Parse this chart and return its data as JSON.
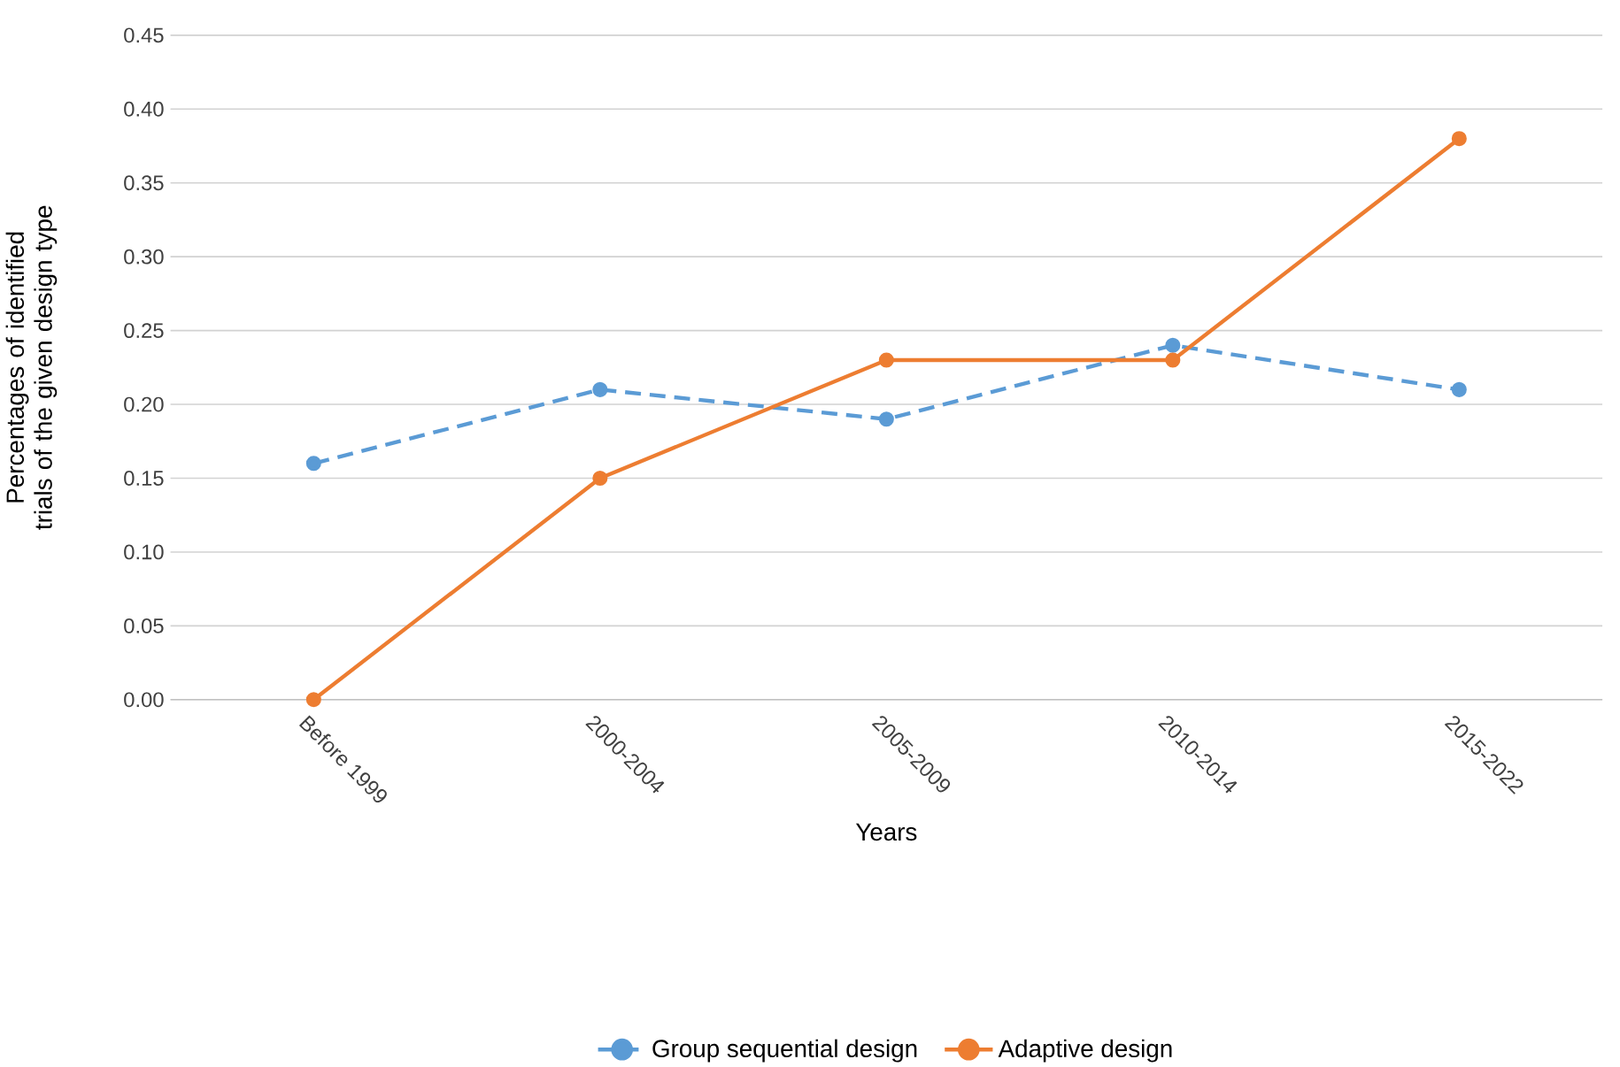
{
  "chart_data": {
    "type": "line",
    "xlabel": "Years",
    "ylabel": "Percentages of identified trials of the given design type",
    "categories": [
      "Before 1999",
      "2000-2004",
      "2005-2009",
      "2010-2014",
      "2015-2022"
    ],
    "series": [
      {
        "name": "Group sequential design",
        "color": "#5b9bd5",
        "line_style": "dashed",
        "values": [
          0.16,
          0.21,
          0.19,
          0.24,
          0.21
        ]
      },
      {
        "name": "Adaptive design",
        "color": "#ed7d31",
        "line_style": "solid",
        "values": [
          0,
          0.15,
          0.23,
          0.23,
          0.38
        ]
      }
    ],
    "marker": "circle",
    "ylim": [
      0,
      0.45
    ],
    "yticks": [
      {
        "value": 0,
        "label": "0.00"
      },
      {
        "value": 0.05,
        "label": "0.05"
      },
      {
        "value": 0.1,
        "label": "0.10"
      },
      {
        "value": 0.15,
        "label": "0.15"
      },
      {
        "value": 0.2,
        "label": "0.20"
      },
      {
        "value": 0.25,
        "label": "0.25"
      },
      {
        "value": 0.3,
        "label": "0.30"
      },
      {
        "value": 0.35,
        "label": "0.35"
      },
      {
        "value": 0.4,
        "label": "0.40"
      },
      {
        "value": 0.45,
        "label": "0.45"
      }
    ],
    "grid": "y",
    "legend": "bottom"
  }
}
